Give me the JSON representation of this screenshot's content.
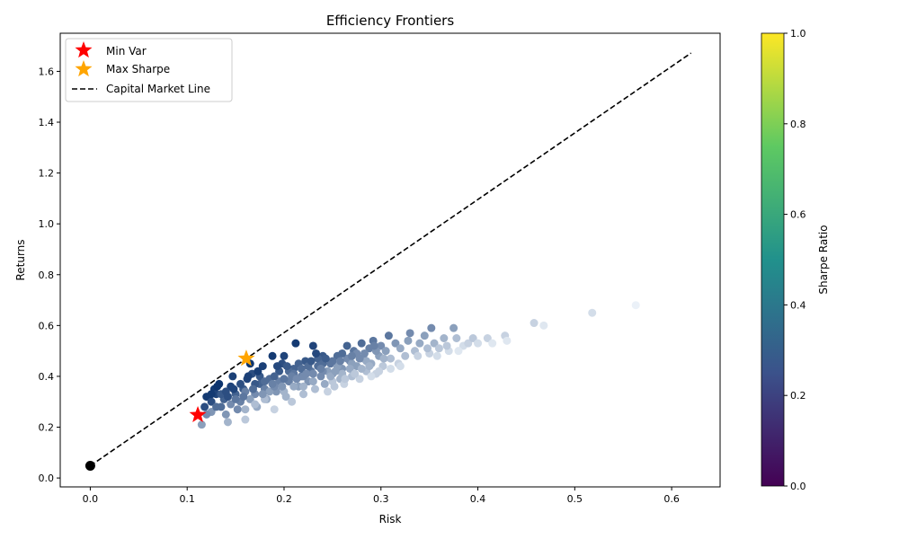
{
  "chart_data": {
    "type": "scatter",
    "title": "Efficiency Frontiers",
    "xlabel": "Risk",
    "ylabel": "Returns",
    "xlim": [
      -0.031,
      0.65
    ],
    "ylim": [
      -0.035,
      1.75
    ],
    "xticks": [
      0.0,
      0.1,
      0.2,
      0.3,
      0.4,
      0.5,
      0.6
    ],
    "xtick_labels": [
      "0.0",
      "0.1",
      "0.2",
      "0.3",
      "0.4",
      "0.5",
      "0.6"
    ],
    "yticks": [
      0.0,
      0.2,
      0.4,
      0.6,
      0.8,
      1.0,
      1.2,
      1.4,
      1.6
    ],
    "ytick_labels": [
      "0.0",
      "0.2",
      "0.4",
      "0.6",
      "0.8",
      "1.0",
      "1.2",
      "1.4",
      "1.6"
    ],
    "grid": false,
    "legend_position": "upper-left",
    "legend": [
      {
        "label": "Min Var",
        "marker": "star",
        "color": "#ff0000"
      },
      {
        "label": "Max Sharpe",
        "marker": "star",
        "color": "#ffa500"
      },
      {
        "label": "Capital Market Line",
        "marker": "dashed-line",
        "color": "#000000"
      }
    ],
    "colorbar": {
      "label": "Sharpe Ratio",
      "range": [
        0.0,
        1.0
      ],
      "ticks": [
        0.0,
        0.2,
        0.4,
        0.6,
        0.8,
        1.0
      ],
      "tick_labels": [
        "0.0",
        "0.2",
        "0.4",
        "0.6",
        "0.8",
        "1.0"
      ],
      "colormap": "viridis",
      "stops": [
        "#440154",
        "#3b528b",
        "#21918c",
        "#5ec962",
        "#fde725"
      ]
    },
    "portfolios": {
      "cmap_light": "#f7fbff",
      "cmap_dark": "#08306b",
      "points": [
        [
          0.115,
          0.21,
          0.45
        ],
        [
          0.118,
          0.28,
          0.85
        ],
        [
          0.12,
          0.32,
          0.95
        ],
        [
          0.125,
          0.3,
          0.85
        ],
        [
          0.128,
          0.35,
          0.95
        ],
        [
          0.13,
          0.33,
          0.9
        ],
        [
          0.133,
          0.37,
          0.98
        ],
        [
          0.135,
          0.28,
          0.7
        ],
        [
          0.138,
          0.31,
          0.75
        ],
        [
          0.14,
          0.25,
          0.5
        ],
        [
          0.142,
          0.22,
          0.35
        ],
        [
          0.145,
          0.36,
          0.9
        ],
        [
          0.147,
          0.4,
          0.92
        ],
        [
          0.15,
          0.33,
          0.75
        ],
        [
          0.152,
          0.27,
          0.55
        ],
        [
          0.155,
          0.3,
          0.6
        ],
        [
          0.158,
          0.35,
          0.8
        ],
        [
          0.16,
          0.23,
          0.25
        ],
        [
          0.162,
          0.39,
          0.9
        ],
        [
          0.165,
          0.45,
          0.97
        ],
        [
          0.167,
          0.41,
          0.85
        ],
        [
          0.17,
          0.33,
          0.55
        ],
        [
          0.172,
          0.28,
          0.4
        ],
        [
          0.175,
          0.37,
          0.75
        ],
        [
          0.178,
          0.44,
          0.92
        ],
        [
          0.18,
          0.35,
          0.6
        ],
        [
          0.182,
          0.31,
          0.4
        ],
        [
          0.185,
          0.39,
          0.7
        ],
        [
          0.188,
          0.48,
          0.95
        ],
        [
          0.19,
          0.27,
          0.2
        ],
        [
          0.192,
          0.34,
          0.5
        ],
        [
          0.195,
          0.42,
          0.8
        ],
        [
          0.198,
          0.45,
          0.85
        ],
        [
          0.2,
          0.48,
          0.9
        ],
        [
          0.202,
          0.32,
          0.35
        ],
        [
          0.205,
          0.38,
          0.6
        ],
        [
          0.208,
          0.3,
          0.25
        ],
        [
          0.21,
          0.43,
          0.75
        ],
        [
          0.212,
          0.53,
          0.95
        ],
        [
          0.215,
          0.36,
          0.45
        ],
        [
          0.218,
          0.4,
          0.6
        ],
        [
          0.22,
          0.33,
          0.3
        ],
        [
          0.222,
          0.46,
          0.8
        ],
        [
          0.225,
          0.38,
          0.5
        ],
        [
          0.228,
          0.42,
          0.65
        ],
        [
          0.23,
          0.52,
          0.9
        ],
        [
          0.232,
          0.35,
          0.3
        ],
        [
          0.235,
          0.44,
          0.7
        ],
        [
          0.238,
          0.4,
          0.55
        ],
        [
          0.24,
          0.48,
          0.8
        ],
        [
          0.242,
          0.37,
          0.4
        ],
        [
          0.245,
          0.34,
          0.2
        ],
        [
          0.248,
          0.45,
          0.65
        ],
        [
          0.25,
          0.41,
          0.5
        ],
        [
          0.252,
          0.36,
          0.25
        ],
        [
          0.255,
          0.48,
          0.7
        ],
        [
          0.258,
          0.39,
          0.35
        ],
        [
          0.26,
          0.43,
          0.5
        ],
        [
          0.262,
          0.37,
          0.2
        ],
        [
          0.265,
          0.52,
          0.75
        ],
        [
          0.268,
          0.46,
          0.55
        ],
        [
          0.27,
          0.4,
          0.3
        ],
        [
          0.272,
          0.5,
          0.65
        ],
        [
          0.275,
          0.44,
          0.45
        ],
        [
          0.278,
          0.39,
          0.2
        ],
        [
          0.28,
          0.53,
          0.7
        ],
        [
          0.282,
          0.47,
          0.5
        ],
        [
          0.285,
          0.42,
          0.3
        ],
        [
          0.288,
          0.51,
          0.6
        ],
        [
          0.29,
          0.45,
          0.4
        ],
        [
          0.292,
          0.54,
          0.65
        ],
        [
          0.295,
          0.41,
          0.2
        ],
        [
          0.298,
          0.48,
          0.45
        ],
        [
          0.3,
          0.52,
          0.55
        ],
        [
          0.302,
          0.44,
          0.25
        ],
        [
          0.305,
          0.5,
          0.45
        ],
        [
          0.308,
          0.56,
          0.65
        ],
        [
          0.31,
          0.47,
          0.3
        ],
        [
          0.315,
          0.53,
          0.5
        ],
        [
          0.318,
          0.45,
          0.2
        ],
        [
          0.32,
          0.51,
          0.4
        ],
        [
          0.325,
          0.48,
          0.3
        ],
        [
          0.328,
          0.54,
          0.45
        ],
        [
          0.33,
          0.57,
          0.55
        ],
        [
          0.335,
          0.5,
          0.3
        ],
        [
          0.34,
          0.53,
          0.4
        ],
        [
          0.345,
          0.56,
          0.45
        ],
        [
          0.35,
          0.49,
          0.2
        ],
        [
          0.352,
          0.59,
          0.55
        ],
        [
          0.355,
          0.53,
          0.35
        ],
        [
          0.36,
          0.51,
          0.25
        ],
        [
          0.365,
          0.55,
          0.35
        ],
        [
          0.37,
          0.5,
          0.15
        ],
        [
          0.375,
          0.59,
          0.45
        ],
        [
          0.378,
          0.55,
          0.3
        ],
        [
          0.385,
          0.52,
          0.15
        ],
        [
          0.39,
          0.53,
          0.2
        ],
        [
          0.395,
          0.55,
          0.25
        ],
        [
          0.4,
          0.53,
          0.15
        ],
        [
          0.41,
          0.55,
          0.2
        ],
        [
          0.415,
          0.53,
          0.1
        ],
        [
          0.428,
          0.56,
          0.2
        ],
        [
          0.43,
          0.54,
          0.1
        ],
        [
          0.458,
          0.61,
          0.2
        ],
        [
          0.468,
          0.6,
          0.1
        ],
        [
          0.518,
          0.65,
          0.15
        ],
        [
          0.563,
          0.68,
          0.05
        ],
        [
          0.125,
          0.26,
          0.5
        ],
        [
          0.135,
          0.33,
          0.8
        ],
        [
          0.145,
          0.29,
          0.55
        ],
        [
          0.155,
          0.37,
          0.85
        ],
        [
          0.165,
          0.31,
          0.45
        ],
        [
          0.175,
          0.4,
          0.8
        ],
        [
          0.185,
          0.34,
          0.45
        ],
        [
          0.195,
          0.38,
          0.6
        ],
        [
          0.205,
          0.42,
          0.7
        ],
        [
          0.215,
          0.45,
          0.75
        ],
        [
          0.225,
          0.44,
          0.7
        ],
        [
          0.235,
          0.47,
          0.75
        ],
        [
          0.245,
          0.42,
          0.45
        ],
        [
          0.255,
          0.44,
          0.45
        ],
        [
          0.265,
          0.47,
          0.55
        ],
        [
          0.275,
          0.49,
          0.55
        ],
        [
          0.285,
          0.46,
          0.4
        ],
        [
          0.295,
          0.5,
          0.5
        ],
        [
          0.16,
          0.34,
          0.6
        ],
        [
          0.17,
          0.29,
          0.3
        ],
        [
          0.18,
          0.31,
          0.3
        ],
        [
          0.19,
          0.36,
          0.55
        ],
        [
          0.2,
          0.34,
          0.35
        ],
        [
          0.21,
          0.36,
          0.4
        ],
        [
          0.22,
          0.4,
          0.55
        ],
        [
          0.23,
          0.38,
          0.4
        ],
        [
          0.24,
          0.42,
          0.55
        ],
        [
          0.25,
          0.38,
          0.25
        ],
        [
          0.26,
          0.41,
          0.35
        ],
        [
          0.27,
          0.45,
          0.45
        ],
        [
          0.28,
          0.43,
          0.35
        ],
        [
          0.29,
          0.4,
          0.15
        ],
        [
          0.31,
          0.43,
          0.15
        ],
        [
          0.13,
          0.28,
          0.7
        ],
        [
          0.14,
          0.34,
          0.85
        ],
        [
          0.15,
          0.31,
          0.65
        ],
        [
          0.16,
          0.27,
          0.35
        ],
        [
          0.17,
          0.37,
          0.8
        ],
        [
          0.18,
          0.38,
          0.7
        ],
        [
          0.19,
          0.4,
          0.75
        ],
        [
          0.2,
          0.39,
          0.65
        ],
        [
          0.21,
          0.41,
          0.65
        ],
        [
          0.22,
          0.36,
          0.35
        ],
        [
          0.23,
          0.41,
          0.55
        ],
        [
          0.24,
          0.45,
          0.7
        ],
        [
          0.25,
          0.46,
          0.65
        ],
        [
          0.26,
          0.49,
          0.7
        ],
        [
          0.27,
          0.48,
          0.6
        ],
        [
          0.12,
          0.25,
          0.55
        ],
        [
          0.125,
          0.33,
          0.95
        ],
        [
          0.148,
          0.35,
          0.9
        ],
        [
          0.158,
          0.32,
          0.65
        ],
        [
          0.168,
          0.35,
          0.7
        ],
        [
          0.178,
          0.33,
          0.5
        ],
        [
          0.188,
          0.37,
          0.6
        ],
        [
          0.198,
          0.36,
          0.5
        ],
        [
          0.208,
          0.4,
          0.6
        ],
        [
          0.218,
          0.43,
          0.7
        ],
        [
          0.228,
          0.46,
          0.8
        ],
        [
          0.238,
          0.43,
          0.6
        ],
        [
          0.248,
          0.4,
          0.4
        ],
        [
          0.258,
          0.46,
          0.6
        ],
        [
          0.268,
          0.43,
          0.4
        ],
        [
          0.278,
          0.47,
          0.55
        ],
        [
          0.288,
          0.44,
          0.35
        ],
        [
          0.298,
          0.42,
          0.2
        ],
        [
          0.303,
          0.47,
          0.35
        ],
        [
          0.32,
          0.44,
          0.15
        ],
        [
          0.338,
          0.48,
          0.2
        ],
        [
          0.348,
          0.51,
          0.3
        ],
        [
          0.358,
          0.48,
          0.15
        ],
        [
          0.368,
          0.52,
          0.25
        ],
        [
          0.38,
          0.5,
          0.1
        ],
        [
          0.131,
          0.36,
          0.98
        ],
        [
          0.142,
          0.32,
          0.85
        ],
        [
          0.163,
          0.4,
          0.92
        ],
        [
          0.173,
          0.42,
          0.93
        ],
        [
          0.193,
          0.44,
          0.88
        ],
        [
          0.203,
          0.44,
          0.8
        ],
        [
          0.213,
          0.39,
          0.55
        ],
        [
          0.223,
          0.41,
          0.55
        ],
        [
          0.233,
          0.49,
          0.88
        ],
        [
          0.243,
          0.47,
          0.78
        ],
        [
          0.253,
          0.42,
          0.45
        ],
        [
          0.263,
          0.39,
          0.25
        ],
        [
          0.273,
          0.41,
          0.25
        ],
        [
          0.283,
          0.49,
          0.55
        ],
        [
          0.293,
          0.52,
          0.6
        ]
      ]
    },
    "min_var": {
      "x": 0.111,
      "y": 0.248,
      "color": "#ff0000"
    },
    "max_sharpe": {
      "x": 0.161,
      "y": 0.47,
      "color": "#ffa500"
    },
    "risk_free": {
      "x": 0.0,
      "y": 0.048,
      "color": "#000000"
    },
    "capital_market_line": {
      "x": [
        0.0,
        0.62
      ],
      "y": [
        0.048,
        1.672
      ],
      "color": "#000000",
      "style": "dashed"
    }
  }
}
